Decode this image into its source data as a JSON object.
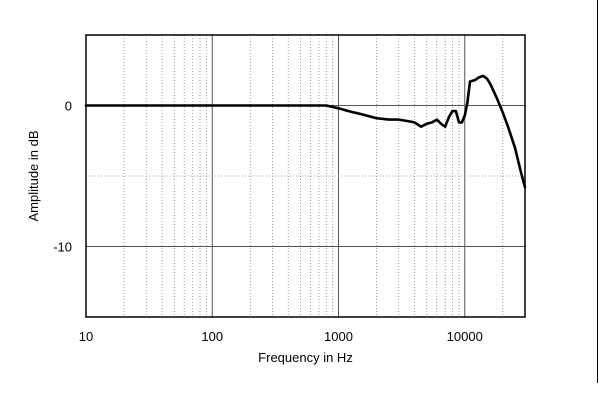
{
  "chart_data": {
    "type": "line",
    "xlabel": "Frequency in Hz",
    "ylabel": "Amplitude in dB",
    "x_scale": "log",
    "xlim": [
      10,
      30000
    ],
    "ylim": [
      -15,
      5
    ],
    "x_ticks": [
      10,
      100,
      1000,
      10000
    ],
    "x_tick_labels": [
      "10",
      "100",
      "1000",
      "10000"
    ],
    "y_ticks": [
      0,
      -10
    ],
    "y_tick_labels": [
      "0",
      "-10"
    ],
    "grid": true,
    "series": [
      {
        "color": "#000000",
        "x": [
          10,
          20,
          50,
          100,
          200,
          500,
          800,
          1000,
          1200,
          1500,
          2000,
          2500,
          3000,
          3500,
          4000,
          4500,
          5000,
          5500,
          6000,
          6500,
          7000,
          7500,
          8000,
          8500,
          9000,
          9500,
          10000,
          10500,
          11000,
          12000,
          13000,
          14000,
          15000,
          16000,
          18000,
          20000,
          22000,
          25000,
          28000,
          30000
        ],
        "y": [
          0,
          0,
          0,
          0,
          0,
          0,
          0,
          -0.2,
          -0.4,
          -0.6,
          -0.9,
          -1.0,
          -1.0,
          -1.1,
          -1.2,
          -1.5,
          -1.3,
          -1.2,
          -1.0,
          -1.3,
          -1.5,
          -0.8,
          -0.4,
          -0.4,
          -1.2,
          -1.2,
          -0.7,
          0.2,
          1.7,
          1.8,
          2.0,
          2.1,
          1.9,
          1.5,
          0.5,
          -0.5,
          -1.5,
          -3.0,
          -4.8,
          -5.8
        ]
      }
    ]
  }
}
